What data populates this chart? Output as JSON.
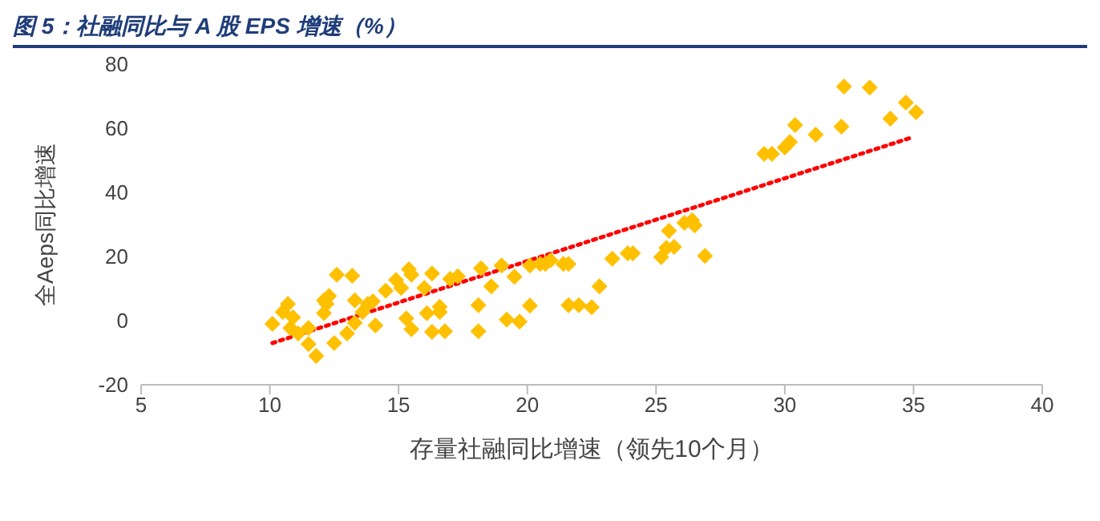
{
  "chart_data": {
    "type": "scatter",
    "title": "图 5：社融同比与 A 股 EPS 增速（%）",
    "xlabel": "存量社融同比增速（领先10个月）",
    "ylabel": "全Aeps同比增速",
    "xlim": [
      5,
      40
    ],
    "xticks": [
      5,
      10,
      15,
      20,
      25,
      30,
      35,
      40
    ],
    "ylim": [
      -20,
      80
    ],
    "yticks": [
      -20,
      0,
      20,
      40,
      60,
      80
    ],
    "grid": false,
    "series": [
      {
        "color": "#ffc000",
        "marker": "diamond",
        "x": [
          32.3,
          33.3,
          34.7,
          35.1,
          34.1,
          32.2,
          31.2,
          30.4,
          30.2,
          30.0,
          29.5,
          29.2,
          26.1,
          26.4,
          26.5,
          25.5,
          25.7,
          25.4,
          25.2,
          26.9,
          24.1,
          23.9,
          23.3,
          22.8,
          22.5,
          22.0,
          21.6,
          21.6,
          21.4,
          20.9,
          20.7,
          20.5,
          20.1,
          20.1,
          19.7,
          19.2,
          19.5,
          19.0,
          18.6,
          18.2,
          18.1,
          18.1,
          17.3,
          17.0,
          12.6,
          13.2,
          12.3,
          12.1,
          12.2,
          13.3,
          10.7,
          10.5,
          10.9,
          10.1,
          10.8,
          11.1,
          11.5,
          11.5,
          11.8,
          12.5,
          12.1,
          13.0,
          13.6,
          13.3,
          13.8,
          14.1,
          14.0,
          14.5,
          14.9,
          15.4,
          15.5,
          15.1,
          16.3,
          16.0,
          16.6,
          16.6,
          16.1,
          15.3,
          15.5,
          16.3,
          16.8
        ],
        "values": [
          73,
          72.7,
          68,
          65,
          63,
          60.5,
          58,
          61,
          55.7,
          54,
          52,
          52,
          30.5,
          31.3,
          29.7,
          28,
          23,
          22.7,
          19.8,
          20.2,
          21,
          21,
          19.3,
          10.7,
          4.2,
          4.8,
          4.8,
          17.7,
          17.7,
          18.8,
          17.7,
          17.7,
          17.2,
          4.7,
          -0.3,
          0.3,
          13.7,
          17.2,
          10.7,
          16.3,
          4.8,
          -3.3,
          13.8,
          13,
          14.3,
          14,
          7.7,
          6.3,
          5.2,
          6.3,
          5.2,
          2.7,
          1,
          -1,
          -2.3,
          -4,
          -2.3,
          -7.3,
          -11,
          -7,
          2.3,
          -4,
          2.7,
          -0.7,
          5.2,
          -1.5,
          6,
          9.3,
          12.7,
          16,
          14.3,
          10.2,
          14.7,
          10.2,
          4.3,
          2.7,
          2.3,
          0.7,
          -2.7,
          -3.5,
          -3.3
        ]
      },
      {
        "type": "line",
        "color": "#ff0000",
        "line_style": "dotted",
        "marker": "none",
        "x": [
          10.1,
          35.0
        ],
        "values": [
          -7,
          57.3
        ]
      }
    ]
  }
}
